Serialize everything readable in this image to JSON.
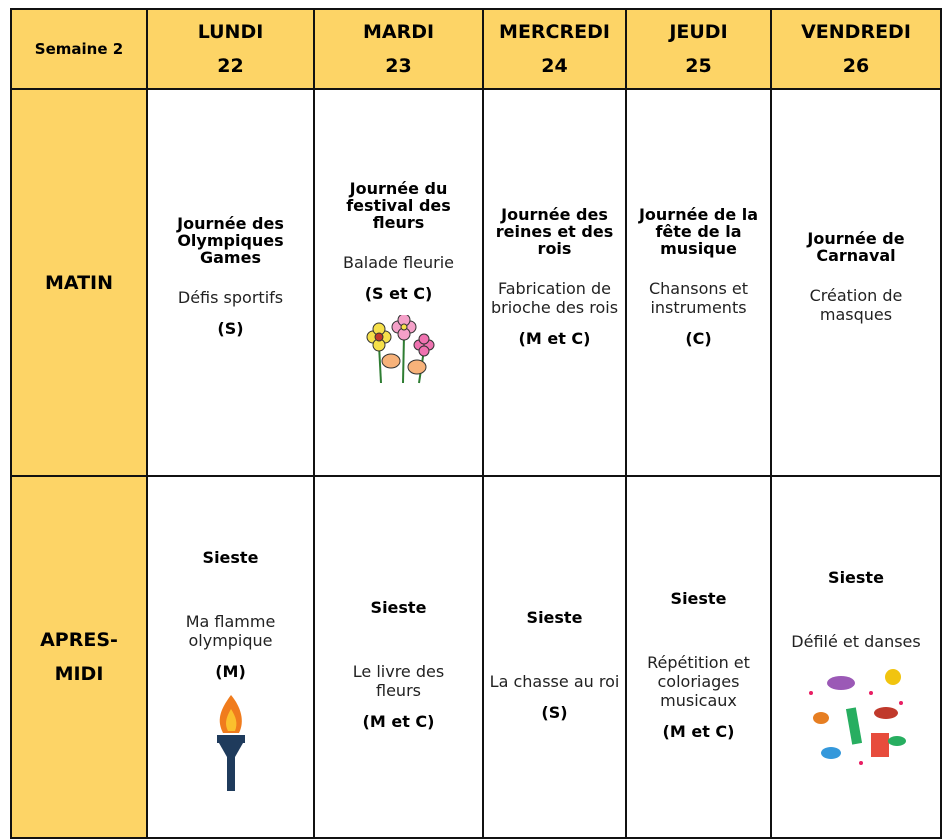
{
  "table": {
    "corner": "Semaine 2",
    "days": [
      {
        "name": "LUNDI",
        "date": "22"
      },
      {
        "name": "MARDI",
        "date": "23"
      },
      {
        "name": "MERCREDI",
        "date": "24"
      },
      {
        "name": "JEUDI",
        "date": "25"
      },
      {
        "name": "VENDREDI",
        "date": "26"
      }
    ],
    "rows": [
      {
        "label": "MATIN",
        "cells": [
          {
            "title": "Journée des Olympiques Games",
            "activity": "Défis sportifs",
            "code": "(S)"
          },
          {
            "title": "Journée du festival des fleurs",
            "activity": "Balade fleurie",
            "code": "(S et C)"
          },
          {
            "title": "Journée des reines et des rois",
            "activity": "Fabrication de brioche des rois",
            "code": "(M et C)"
          },
          {
            "title": "Journée de la fête de la musique",
            "activity": "Chansons et instruments",
            "code": "(C)"
          },
          {
            "title": "Journée de Carnaval",
            "activity": "Création de masques"
          }
        ]
      },
      {
        "label": "APRES-MIDI",
        "cells": [
          {
            "title": "Sieste",
            "activity": "Ma flamme olympique",
            "code": "(M)"
          },
          {
            "title": "Sieste",
            "activity": "Le livre des fleurs",
            "code": "(M et C)"
          },
          {
            "title": "Sieste",
            "activity": "La chasse au roi",
            "code": "(S)"
          },
          {
            "title": "Sieste",
            "activity": "Répétition et coloriages musicaux",
            "code": "(M et C)"
          },
          {
            "title": "Sieste",
            "activity": "Défilé et danses"
          }
        ]
      }
    ]
  }
}
